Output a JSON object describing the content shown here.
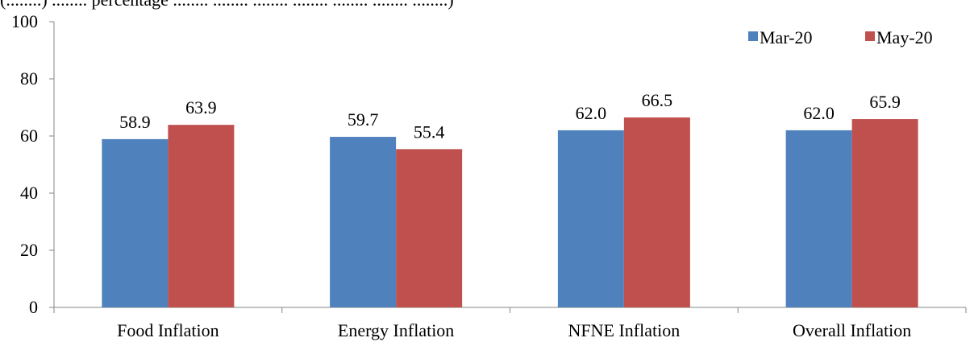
{
  "header_partial": "(........) ........ percentage ........ ........ ........ ........ ........ ........ ........)",
  "chart_data": {
    "type": "bar",
    "categories": [
      "Food Inflation",
      "Energy Inflation",
      "NFNE Inflation",
      "Overall Inflation"
    ],
    "series": [
      {
        "name": "Mar-20",
        "values": [
          58.9,
          59.7,
          62.0,
          62.0
        ],
        "labels": [
          "58.9",
          "59.7",
          "62.0",
          "62.0"
        ],
        "color": "#4f81bd"
      },
      {
        "name": "May-20",
        "values": [
          63.9,
          55.4,
          66.5,
          65.9
        ],
        "labels": [
          "63.9",
          "55.4",
          "66.5",
          "65.9"
        ],
        "color": "#c0504d"
      }
    ],
    "ylim": [
      0,
      100
    ],
    "yticks": [
      "0",
      "20",
      "40",
      "60",
      "80",
      "100"
    ],
    "grid": false,
    "legend": "top-right"
  }
}
